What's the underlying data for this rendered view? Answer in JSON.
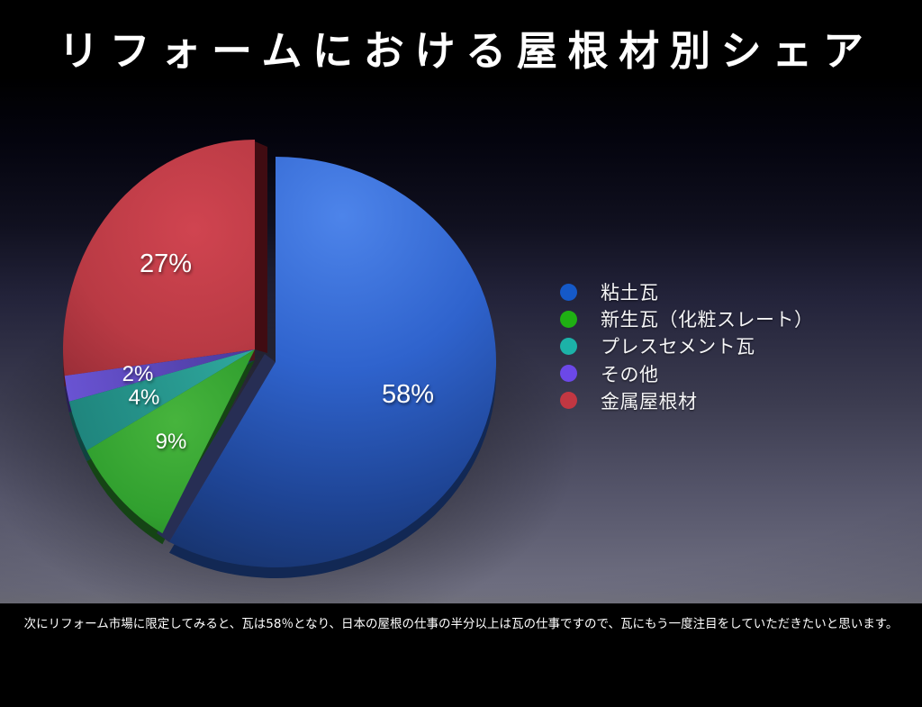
{
  "slide": {
    "title": "リフォームにおける屋根材別シェア",
    "caption": "次にリフォーム市場に限定してみると、瓦は58％となり、日本の屋根の仕事の半分以上は瓦の仕事ですので、瓦にもう一度注目をしていただきたいと思います。"
  },
  "chart_data": {
    "type": "pie",
    "title": "リフォームにおける屋根材別シェア",
    "unit": "%",
    "direction": "clockwise",
    "start_angle_deg": 0,
    "legend_position": "right",
    "slices": [
      {
        "label": "粘土瓦",
        "value": 58,
        "data_label": "58%",
        "color": "#2a5fc9",
        "legend_color": "#1559c8",
        "exploded": true
      },
      {
        "label": "新生瓦（化粧スレート）",
        "value": 9,
        "data_label": "9%",
        "color": "#33a232",
        "legend_color": "#1fb013",
        "exploded": false
      },
      {
        "label": "プレスセメント瓦",
        "value": 4,
        "data_label": "4%",
        "color": "#25a096",
        "legend_color": "#1cb2a8",
        "exploded": false
      },
      {
        "label": "その他",
        "value": 2,
        "data_label": "2%",
        "color": "#5c49c8",
        "legend_color": "#6c48e8",
        "exploded": false
      },
      {
        "label": "金属屋根材",
        "value": 27,
        "data_label": "27%",
        "color": "#b53640",
        "legend_color": "#c23742",
        "exploded": false
      }
    ]
  }
}
